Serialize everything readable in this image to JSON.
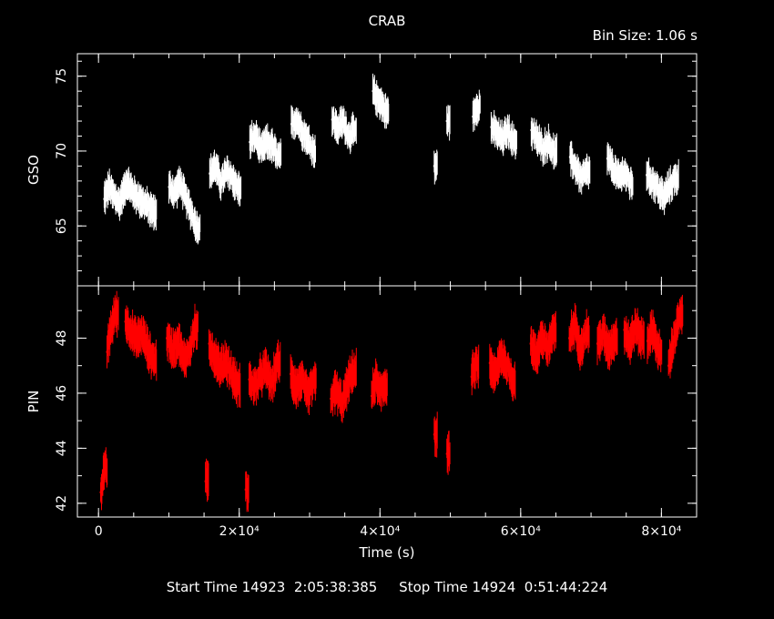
{
  "header": {
    "title": "CRAB",
    "bin_size": "Bin Size: 1.06 s"
  },
  "footer": {
    "time_range": "Start Time 14923  2:05:38:385     Stop Time 14924  0:51:44:224"
  },
  "colors": {
    "background": "#000000",
    "axes": "#ffffff",
    "gso_series": "#ffffff",
    "pin_series": "#ff0000"
  },
  "chart_data": [
    {
      "type": "line",
      "name": "top-panel",
      "xlabel": "",
      "ylabel": "GSO",
      "xlim": [
        -3000,
        85000
      ],
      "ylim": [
        61,
        76.5
      ],
      "yticks": [
        65,
        70,
        75
      ],
      "ytick_labels": [
        "65",
        "70",
        "75"
      ],
      "series": [
        {
          "name": "GSO",
          "segments": [
            {
              "x": [
                800,
                1500,
                2200,
                3000,
                4000,
                5000,
                6000,
                7000,
                7800
              ],
              "y": [
                66.8,
                67.6,
                67.0,
                66.5,
                67.9,
                67.2,
                66.7,
                66.3,
                65.9
              ]
            },
            {
              "x": [
                10000,
                10800,
                11600,
                12400,
                13200,
                14000
              ],
              "y": [
                67.6,
                67.2,
                67.9,
                66.8,
                65.9,
                64.9
              ]
            },
            {
              "x": [
                15800,
                16600,
                17400,
                18200,
                19000,
                19800
              ],
              "y": [
                68.5,
                69.0,
                67.9,
                68.6,
                68.2,
                67.5
              ]
            },
            {
              "x": [
                21500,
                22300,
                23100,
                23900,
                24700,
                25500
              ],
              "y": [
                70.6,
                71.0,
                70.0,
                70.6,
                70.3,
                69.6
              ]
            },
            {
              "x": [
                27400,
                28200,
                29000,
                29800,
                30400
              ],
              "y": [
                71.8,
                72.1,
                71.3,
                70.7,
                70.1
              ]
            },
            {
              "x": [
                33200,
                34000,
                34800,
                35600,
                36200
              ],
              "y": [
                72.1,
                71.5,
                72.0,
                71.0,
                71.3
              ]
            },
            {
              "x": [
                39000,
                39600,
                40200,
                40800
              ],
              "y": [
                74.0,
                73.5,
                73.2,
                72.6
              ]
            },
            {
              "x": [
                47700
              ],
              "y": [
                69.0
              ]
            },
            {
              "x": [
                49500
              ],
              "y": [
                72.0
              ]
            },
            {
              "x": [
                53200,
                53800
              ],
              "y": [
                72.3,
                73.0
              ]
            },
            {
              "x": [
                55800,
                56600,
                57400,
                58200,
                59000
              ],
              "y": [
                71.6,
                71.2,
                70.8,
                71.4,
                70.6
              ]
            },
            {
              "x": [
                61500,
                62300,
                63100,
                63900,
                64700
              ],
              "y": [
                71.4,
                70.8,
                70.2,
                70.6,
                69.9
              ]
            },
            {
              "x": [
                67000,
                67800,
                68600,
                69400
              ],
              "y": [
                69.6,
                68.9,
                68.2,
                68.6
              ]
            },
            {
              "x": [
                72300,
                73100,
                73900,
                74700,
                75500
              ],
              "y": [
                69.5,
                68.9,
                68.2,
                68.6,
                67.9
              ]
            },
            {
              "x": [
                77900,
                78700,
                79500,
                80300,
                81100,
                82000
              ],
              "y": [
                68.4,
                68.0,
                67.5,
                66.9,
                67.6,
                68.2
              ]
            }
          ]
        }
      ]
    },
    {
      "type": "line",
      "name": "bottom-panel",
      "xlabel": "Time (s)",
      "ylabel": "PIN",
      "xlim": [
        -3000,
        85000
      ],
      "ylim": [
        41.5,
        49.9
      ],
      "xticks": [
        0,
        20000,
        40000,
        60000,
        80000
      ],
      "xtick_labels": [
        "0",
        "2×10⁴",
        "4×10⁴",
        "6×10⁴",
        "8×10⁴"
      ],
      "yticks": [
        42,
        44,
        46,
        48
      ],
      "ytick_labels": [
        "42",
        "44",
        "46",
        "48"
      ],
      "series": [
        {
          "name": "PIN",
          "segments": [
            {
              "x": [
                300,
                800
              ],
              "y": [
                42.4,
                43.2
              ]
            },
            {
              "x": [
                1200,
                1800,
                2400
              ],
              "y": [
                47.5,
                48.4,
                48.9
              ]
            },
            {
              "x": [
                3800,
                4600,
                5400,
                6200,
                7000,
                7800
              ],
              "y": [
                48.6,
                48.3,
                47.9,
                48.2,
                47.6,
                47.2
              ]
            },
            {
              "x": [
                9700,
                10500,
                11300,
                12100,
                12900,
                13700
              ],
              "y": [
                48.0,
                47.6,
                47.9,
                47.2,
                47.5,
                48.4
              ]
            },
            {
              "x": [
                15200
              ],
              "y": [
                42.8
              ]
            },
            {
              "x": [
                15700,
                16500,
                17300,
                18100,
                18900,
                19700
              ],
              "y": [
                47.8,
                47.3,
                46.9,
                47.2,
                46.7,
                46.3
              ]
            },
            {
              "x": [
                20900
              ],
              "y": [
                42.5
              ]
            },
            {
              "x": [
                21400,
                22200,
                23000,
                23800,
                24600,
                25400
              ],
              "y": [
                46.5,
                46.2,
                46.6,
                46.9,
                46.3,
                47.1
              ]
            },
            {
              "x": [
                27300,
                28100,
                28900,
                29700,
                30500
              ],
              "y": [
                46.7,
                46.2,
                46.5,
                45.9,
                46.4
              ]
            },
            {
              "x": [
                33000,
                33800,
                34600,
                35400,
                36200
              ],
              "y": [
                45.8,
                46.1,
                45.6,
                46.3,
                46.8
              ]
            },
            {
              "x": [
                38800,
                39400,
                40000,
                40600
              ],
              "y": [
                45.9,
                46.5,
                46.0,
                46.3
              ]
            },
            {
              "x": [
                47700
              ],
              "y": [
                44.5
              ]
            },
            {
              "x": [
                49500
              ],
              "y": [
                43.8
              ]
            },
            {
              "x": [
                53000,
                53600
              ],
              "y": [
                46.6,
                47.0
              ]
            },
            {
              "x": [
                55600,
                56400,
                57200,
                58000,
                58800
              ],
              "y": [
                47.1,
                46.6,
                47.4,
                47.0,
                46.5
              ]
            },
            {
              "x": [
                61400,
                62200,
                63000,
                63800,
                64600
              ],
              "y": [
                47.8,
                47.3,
                48.1,
                47.6,
                48.2
              ]
            },
            {
              "x": [
                66900,
                67700,
                68500,
                69300
              ],
              "y": [
                48.0,
                48.5,
                47.6,
                48.2
              ]
            },
            {
              "x": [
                70900,
                71700,
                72500,
                73300
              ],
              "y": [
                47.8,
                48.2,
                47.6,
                48.0
              ]
            },
            {
              "x": [
                74700,
                75500,
                76300,
                77100
              ],
              "y": [
                48.3,
                47.8,
                48.4,
                48.0
              ]
            },
            {
              "x": [
                78000,
                78800,
                79600
              ],
              "y": [
                47.9,
                48.3,
                47.5
              ]
            },
            {
              "x": [
                81000,
                81800,
                82600
              ],
              "y": [
                47.0,
                48.0,
                48.8
              ]
            }
          ]
        }
      ]
    }
  ]
}
